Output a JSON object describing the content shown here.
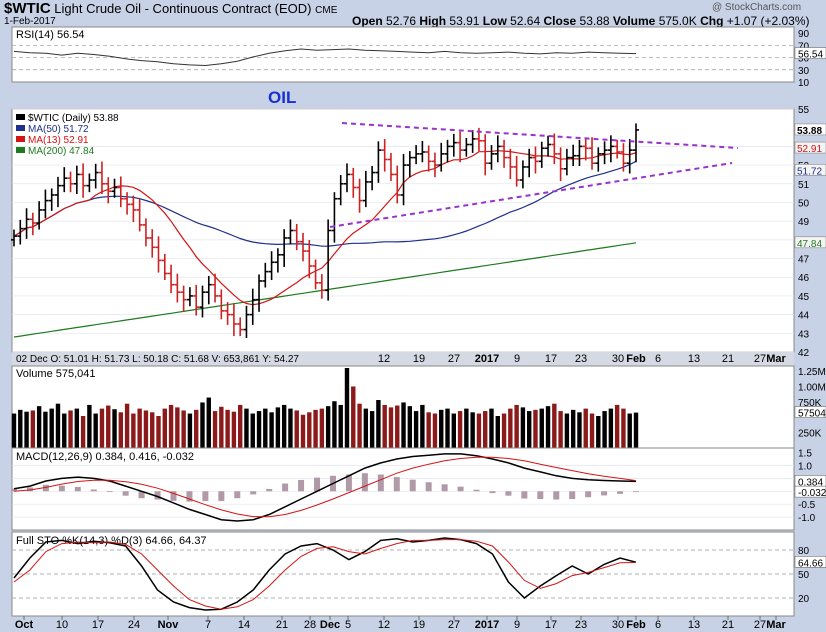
{
  "header": {
    "symbol": "$WTIC",
    "description": "Light Crude Oil - Continuous Contract (EOD)",
    "exchange": "CME",
    "date": "1-Feb-2017",
    "watermark": "@ StockCharts.com",
    "quote": {
      "open_label": "Open",
      "open": "52.76",
      "high_label": "High",
      "high": "53.91",
      "low_label": "Low",
      "low": "52.64",
      "close_label": "Close",
      "close": "53.88",
      "volume_label": "Volume",
      "volume": "575.0K",
      "chg_label": "Chg",
      "chg": "+1.07 (+2.03%)"
    }
  },
  "colors": {
    "background": "#c8d2e6",
    "panel": "#ffffff",
    "up_bar": "#000000",
    "down_bar": "#cc2222",
    "ma50": "#1f2f8c",
    "ma13": "#d41414",
    "ma200": "#1e7a1e",
    "trendline": "#9932cc",
    "annotation": "#1a2fd0",
    "volume": "#8b1a1a",
    "macd_hist": "#b09aa8"
  },
  "annotation": "OIL",
  "chart_data": [
    {
      "type": "line",
      "title": "RSI(14) 56.54",
      "legend": "RSI(14)",
      "value": 56.54,
      "ylim": [
        10,
        100
      ],
      "y_ticks": [
        "90",
        "70",
        "50",
        "30",
        "10"
      ],
      "last_label": "56.54",
      "series": [
        {
          "name": "RSI(14)",
          "values": [
            60,
            58,
            57,
            54,
            57,
            55,
            52,
            48,
            45,
            43,
            40,
            38,
            37,
            40,
            44,
            51,
            57,
            61,
            64,
            62,
            63,
            64,
            62,
            61,
            60,
            59,
            58,
            60,
            58,
            57,
            58,
            59,
            57,
            56,
            58,
            57,
            59,
            58,
            57,
            56.54
          ]
        }
      ]
    },
    {
      "type": "candlestick",
      "title": "$WTIC (Daily) 53.88",
      "ylim": [
        42,
        55
      ],
      "y_ticks": [
        "55",
        "53",
        "52",
        "51",
        "50",
        "49",
        "48",
        "47",
        "46",
        "45",
        "44",
        "43",
        "42"
      ],
      "legend": [
        {
          "name": "$WTIC (Daily)",
          "value": "53.88"
        },
        {
          "name": "MA(50)",
          "value": "51.72"
        },
        {
          "name": "MA(13)",
          "value": "52.91"
        },
        {
          "name": "MA(200)",
          "value": "47.84"
        }
      ],
      "right_labels": [
        "53.88",
        "52.91",
        "51.72",
        "47.84"
      ],
      "ohlc_legend": "02 Dec  O: 51.01   H: 51.73   L: 50.18   C: 51.68   V: 653,861   Y: 54.27",
      "x_ticks": [
        "12",
        "19",
        "27",
        "2017",
        "9",
        "17",
        "23",
        "30",
        "Feb",
        "6",
        "13",
        "21",
        "27",
        "Mar"
      ],
      "close": [
        48.2,
        48.6,
        49.1,
        48.9,
        49.6,
        50.1,
        50.4,
        50.9,
        51.3,
        51.0,
        51.5,
        50.9,
        51.2,
        51.6,
        51.0,
        50.6,
        50.8,
        50.2,
        49.9,
        49.6,
        48.8,
        48.1,
        47.6,
        46.9,
        46.2,
        45.6,
        45.2,
        44.8,
        45.0,
        44.4,
        45.2,
        45.6,
        45.0,
        44.2,
        44.0,
        43.5,
        43.2,
        44.0,
        44.8,
        45.8,
        46.3,
        46.8,
        47.2,
        48.1,
        48.5,
        47.9,
        47.4,
        46.6,
        45.7,
        45.3,
        48.5,
        50.2,
        51.0,
        51.5,
        50.8,
        50.1,
        51.1,
        51.6,
        52.8,
        52.3,
        51.5,
        50.4,
        52.0,
        52.4,
        52.6,
        52.7,
        52.2,
        52.0,
        52.6,
        53.0,
        53.2,
        52.8,
        53.1,
        53.4,
        53.3,
        52.1,
        52.6,
        53.0,
        52.4,
        51.9,
        51.2,
        51.9,
        52.4,
        52.2,
        52.9,
        53.1,
        52.6,
        51.8,
        52.4,
        52.5,
        53.0,
        52.9,
        52.1,
        52.6,
        52.8,
        53.0,
        52.7,
        52.1,
        52.8,
        53.88
      ],
      "series": [
        {
          "name": "MA(50)",
          "start": 48.0,
          "end": 51.72
        },
        {
          "name": "MA(13)",
          "end": 52.91
        },
        {
          "name": "MA(200)",
          "start": 42.8,
          "end": 47.84
        }
      ]
    },
    {
      "type": "bar",
      "title": "Volume 575,041",
      "legend": "Volume",
      "value": "575,041",
      "y_ticks": [
        "1.25M",
        "1.00M",
        "750K",
        "575041",
        "250K"
      ],
      "ylim": [
        0,
        1300
      ],
      "values": [
        560,
        620,
        590,
        610,
        680,
        590,
        640,
        720,
        560,
        610,
        640,
        520,
        700,
        560,
        640,
        690,
        630,
        580,
        720,
        560,
        640,
        610,
        580,
        520,
        640,
        700,
        660,
        610,
        560,
        620,
        740,
        820,
        600,
        670,
        620,
        590,
        700,
        640,
        560,
        600,
        640,
        580,
        660,
        700,
        640,
        610,
        540,
        580,
        620,
        640,
        680,
        760,
        700,
        1300,
        1000,
        720,
        640,
        600,
        780,
        700,
        660,
        690,
        740,
        680,
        600,
        700,
        580,
        560,
        620,
        640,
        560,
        600,
        640,
        580,
        560,
        600,
        640,
        520,
        560,
        640,
        700,
        660,
        600,
        620,
        640,
        680,
        720,
        600,
        560,
        620,
        580,
        640,
        560,
        520,
        600,
        640,
        700,
        640,
        560,
        575
      ]
    },
    {
      "type": "line",
      "title": "MACD(12,26,9) 0.384, 0.416, -0.032",
      "legend": "MACD(12,26,9)",
      "values_text": "0.384, 0.416, -0.032",
      "ylim": [
        -1.5,
        1.6
      ],
      "y_ticks": [
        "1.5",
        "1.0",
        "0.5",
        "0.384",
        "-0.032",
        "-0.5",
        "-1.0"
      ],
      "series": [
        {
          "name": "MACD",
          "values": [
            0.1,
            0.2,
            0.4,
            0.5,
            0.55,
            0.5,
            0.4,
            0.2,
            0.0,
            -0.2,
            -0.45,
            -0.7,
            -0.9,
            -1.1,
            -1.15,
            -1.1,
            -0.9,
            -0.6,
            -0.3,
            0.0,
            0.3,
            0.6,
            0.9,
            1.1,
            1.25,
            1.35,
            1.4,
            1.45,
            1.45,
            1.38,
            1.25,
            1.1,
            0.9,
            0.75,
            0.6,
            0.5,
            0.45,
            0.42,
            0.4,
            0.384
          ]
        },
        {
          "name": "Signal",
          "values": [
            0.0,
            0.05,
            0.15,
            0.28,
            0.38,
            0.43,
            0.43,
            0.37,
            0.27,
            0.12,
            -0.08,
            -0.3,
            -0.52,
            -0.72,
            -0.88,
            -0.98,
            -0.99,
            -0.9,
            -0.74,
            -0.53,
            -0.3,
            -0.05,
            0.2,
            0.45,
            0.7,
            0.9,
            1.05,
            1.18,
            1.27,
            1.32,
            1.32,
            1.27,
            1.18,
            1.05,
            0.92,
            0.8,
            0.68,
            0.58,
            0.5,
            0.416
          ]
        },
        {
          "name": "Histogram",
          "values": [
            0.1,
            0.15,
            0.25,
            0.22,
            0.17,
            0.07,
            -0.03,
            -0.17,
            -0.27,
            -0.32,
            -0.37,
            -0.4,
            -0.38,
            -0.38,
            -0.27,
            -0.12,
            0.09,
            0.3,
            0.44,
            0.53,
            0.6,
            0.65,
            0.7,
            0.65,
            0.55,
            0.45,
            0.35,
            0.27,
            0.18,
            0.06,
            -0.07,
            -0.17,
            -0.28,
            -0.3,
            -0.32,
            -0.3,
            -0.23,
            -0.16,
            -0.1,
            -0.032
          ]
        }
      ]
    },
    {
      "type": "line",
      "title": "Full STO %K(14,3) %D(3) 64.66, 64.37",
      "legend": "Full STO %K(14,3) %D(3)",
      "values_text": "64.66, 64.37",
      "ylim": [
        0,
        100
      ],
      "y_ticks": [
        "80",
        "64.66",
        "50",
        "20"
      ],
      "x_ticks": [
        "Oct",
        "10",
        "17",
        "24",
        "Nov",
        "7",
        "14",
        "21",
        "28",
        "Dec",
        "5",
        "12",
        "19",
        "27",
        "2017",
        "9",
        "17",
        "23",
        "30",
        "Feb",
        "6",
        "13",
        "21",
        "27",
        "Mar"
      ],
      "series": [
        {
          "name": "%K",
          "values": [
            45,
            70,
            90,
            92,
            88,
            91,
            89,
            85,
            60,
            30,
            15,
            8,
            5,
            6,
            15,
            30,
            55,
            75,
            85,
            88,
            80,
            68,
            78,
            92,
            94,
            90,
            92,
            95,
            93,
            88,
            75,
            40,
            20,
            35,
            48,
            60,
            50,
            62,
            70,
            64.66
          ]
        },
        {
          "name": "%D",
          "values": [
            40,
            55,
            78,
            88,
            90,
            89,
            90,
            87,
            75,
            55,
            35,
            18,
            10,
            6,
            9,
            18,
            35,
            55,
            72,
            82,
            84,
            78,
            75,
            82,
            88,
            92,
            92,
            93,
            93,
            91,
            85,
            65,
            42,
            32,
            38,
            48,
            52,
            58,
            64,
            64.37
          ]
        }
      ]
    }
  ]
}
